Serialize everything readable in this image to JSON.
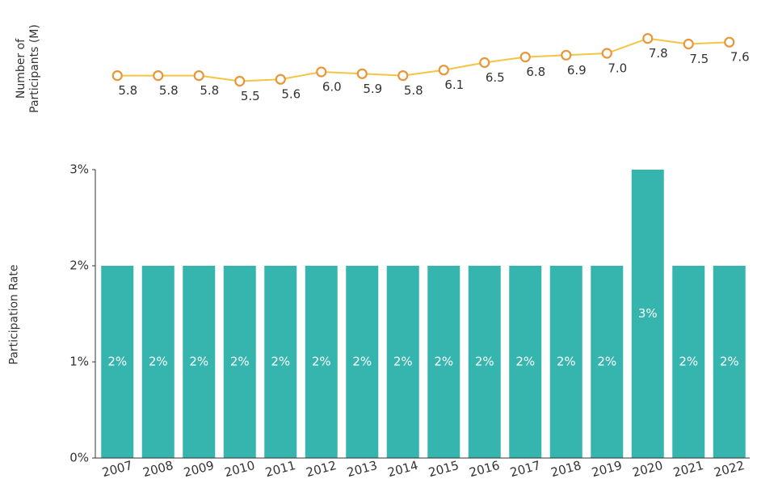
{
  "chart_data": [
    {
      "type": "line",
      "y_label": "Number of Participants (M)",
      "values": [
        5.8,
        5.8,
        5.8,
        5.5,
        5.6,
        6.0,
        5.9,
        5.8,
        6.1,
        6.5,
        6.8,
        6.9,
        7.0,
        7.8,
        7.5,
        7.6
      ],
      "value_labels": [
        "5.8",
        "5.8",
        "5.8",
        "5.5",
        "5.6",
        "6.0",
        "5.9",
        "5.8",
        "6.1",
        "6.5",
        "6.8",
        "6.9",
        "7.0",
        "7.8",
        "7.5",
        "7.6"
      ],
      "color": "#f5c442",
      "marker_color": "#e8963a",
      "ylim": [
        5,
        8
      ]
    },
    {
      "type": "bar",
      "y_label": "Participation Rate",
      "categories": [
        "2007",
        "2008",
        "2009",
        "2010",
        "2011",
        "2012",
        "2013",
        "2014",
        "2015",
        "2016",
        "2017",
        "2018",
        "2019",
        "2020",
        "2021",
        "2022"
      ],
      "values": [
        2,
        2,
        2,
        2,
        2,
        2,
        2,
        2,
        2,
        2,
        2,
        2,
        2,
        3,
        2,
        2
      ],
      "value_labels": [
        "2%",
        "2%",
        "2%",
        "2%",
        "2%",
        "2%",
        "2%",
        "2%",
        "2%",
        "2%",
        "2%",
        "2%",
        "2%",
        "3%",
        "2%",
        "2%"
      ],
      "color": "#35b5ad",
      "ylim": [
        0,
        3
      ],
      "yticks": [
        {
          "value": 0,
          "label": "0%"
        },
        {
          "value": 1,
          "label": "1%"
        },
        {
          "value": 2,
          "label": "2%"
        },
        {
          "value": 3,
          "label": "3%"
        }
      ]
    }
  ]
}
